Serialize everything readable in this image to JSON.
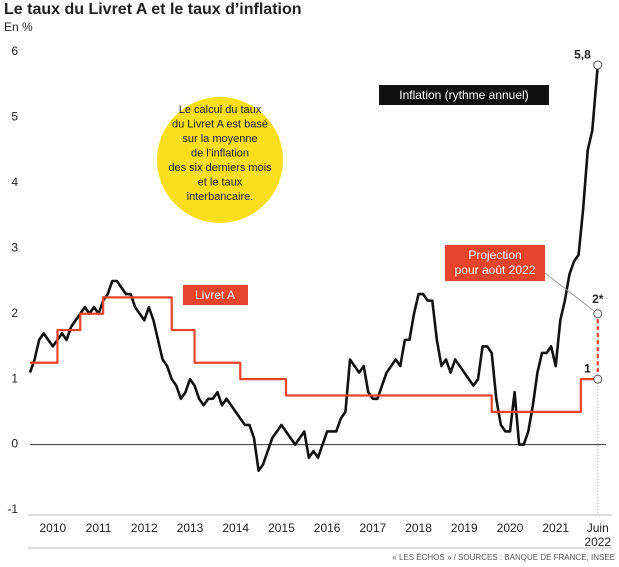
{
  "chart_data": {
    "type": "line",
    "title": "Le taux du Livret A et le taux d’inflation",
    "subtitle": "En %",
    "source": "« LES ÉCHOS » / SOURCES : BANQUE DE FRANCE, INSEE",
    "annotation": [
      "Le calcul du taux",
      "du Livret A est basé",
      "sur la moyenne",
      "de l’inflation",
      "des six derniers mois",
      "et le taux",
      "interbancaire."
    ],
    "xlim": [
      2010,
      2022.6
    ],
    "xticks": [
      {
        "value": 2010.5,
        "label": "2010"
      },
      {
        "value": 2011.5,
        "label": "2011"
      },
      {
        "value": 2012.5,
        "label": "2012"
      },
      {
        "value": 2013.5,
        "label": "2013"
      },
      {
        "value": 2014.5,
        "label": "2014"
      },
      {
        "value": 2015.5,
        "label": "2015"
      },
      {
        "value": 2016.5,
        "label": "2016"
      },
      {
        "value": 2017.5,
        "label": "2017"
      },
      {
        "value": 2018.5,
        "label": "2018"
      },
      {
        "value": 2019.5,
        "label": "2019"
      },
      {
        "value": 2020.5,
        "label": "2020"
      },
      {
        "value": 2021.5,
        "label": "2021"
      },
      {
        "value": 2022.42,
        "label": "Juin 2022"
      }
    ],
    "ylim": [
      -1,
      6
    ],
    "yticks": [
      -1,
      0,
      1,
      2,
      3,
      4,
      5,
      6
    ],
    "series": [
      {
        "name": "Inflation (rythme annuel)",
        "color": "#111111",
        "step": false,
        "end_label": "5,8",
        "x": [
          2010.0,
          2010.1,
          2010.2,
          2010.3,
          2010.4,
          2010.5,
          2010.6,
          2010.7,
          2010.8,
          2010.9,
          2011.0,
          2011.1,
          2011.2,
          2011.3,
          2011.4,
          2011.5,
          2011.6,
          2011.7,
          2011.8,
          2011.9,
          2012.0,
          2012.1,
          2012.2,
          2012.3,
          2012.4,
          2012.5,
          2012.6,
          2012.7,
          2012.8,
          2012.9,
          2013.0,
          2013.1,
          2013.2,
          2013.3,
          2013.4,
          2013.5,
          2013.6,
          2013.7,
          2013.8,
          2013.9,
          2014.0,
          2014.1,
          2014.2,
          2014.3,
          2014.4,
          2014.5,
          2014.6,
          2014.7,
          2014.8,
          2014.9,
          2015.0,
          2015.1,
          2015.2,
          2015.3,
          2015.4,
          2015.5,
          2015.6,
          2015.7,
          2015.8,
          2015.9,
          2016.0,
          2016.1,
          2016.2,
          2016.3,
          2016.4,
          2016.5,
          2016.6,
          2016.7,
          2016.8,
          2016.9,
          2017.0,
          2017.1,
          2017.2,
          2017.3,
          2017.4,
          2017.5,
          2017.6,
          2017.7,
          2017.8,
          2017.9,
          2018.0,
          2018.1,
          2018.2,
          2018.3,
          2018.4,
          2018.5,
          2018.6,
          2018.7,
          2018.8,
          2018.9,
          2019.0,
          2019.1,
          2019.2,
          2019.3,
          2019.4,
          2019.5,
          2019.6,
          2019.7,
          2019.8,
          2019.9,
          2020.0,
          2020.1,
          2020.2,
          2020.3,
          2020.4,
          2020.5,
          2020.6,
          2020.7,
          2020.8,
          2020.9,
          2021.0,
          2021.1,
          2021.2,
          2021.3,
          2021.4,
          2021.5,
          2021.6,
          2021.7,
          2021.8,
          2021.9,
          2022.0,
          2022.1,
          2022.2,
          2022.3,
          2022.42
        ],
        "values": [
          1.1,
          1.3,
          1.6,
          1.7,
          1.6,
          1.5,
          1.6,
          1.7,
          1.6,
          1.8,
          1.9,
          2.0,
          2.1,
          2.0,
          2.1,
          2.0,
          2.2,
          2.3,
          2.5,
          2.5,
          2.4,
          2.3,
          2.3,
          2.1,
          2.0,
          1.9,
          2.1,
          1.9,
          1.6,
          1.3,
          1.2,
          1.0,
          0.9,
          0.7,
          0.8,
          1.0,
          0.9,
          0.7,
          0.6,
          0.7,
          0.7,
          0.8,
          0.6,
          0.7,
          0.6,
          0.5,
          0.4,
          0.3,
          0.3,
          0.1,
          -0.4,
          -0.3,
          -0.1,
          0.1,
          0.2,
          0.3,
          0.2,
          0.1,
          0.0,
          0.1,
          0.2,
          -0.2,
          -0.1,
          -0.2,
          0.0,
          0.2,
          0.2,
          0.2,
          0.4,
          0.5,
          1.3,
          1.2,
          1.1,
          1.2,
          0.8,
          0.7,
          0.7,
          0.9,
          1.1,
          1.2,
          1.3,
          1.2,
          1.6,
          1.6,
          2.0,
          2.3,
          2.3,
          2.2,
          2.2,
          1.6,
          1.2,
          1.3,
          1.1,
          1.3,
          1.2,
          1.1,
          1.0,
          0.9,
          1.0,
          1.5,
          1.5,
          1.4,
          0.7,
          0.3,
          0.2,
          0.2,
          0.8,
          0.0,
          0.0,
          0.2,
          0.6,
          1.1,
          1.4,
          1.4,
          1.5,
          1.2,
          1.9,
          2.2,
          2.6,
          2.8,
          2.9,
          3.6,
          4.5,
          4.8,
          5.8
        ]
      },
      {
        "name": "Livret A",
        "color": "#e8432b",
        "step": true,
        "end_label": "1",
        "x": [
          2010.0,
          2010.6,
          2011.1,
          2011.6,
          2013.1,
          2013.6,
          2014.6,
          2015.6,
          2020.1,
          2022.05,
          2022.42
        ],
        "values": [
          1.25,
          1.75,
          2.0,
          2.25,
          1.75,
          1.25,
          1.0,
          0.75,
          0.5,
          1.0,
          1.0
        ]
      }
    ],
    "projection": {
      "name": [
        "Projection",
        "pour août 2022"
      ],
      "x": 2022.42,
      "value": 2,
      "value_label": "2*",
      "color": "#e8432b"
    }
  }
}
